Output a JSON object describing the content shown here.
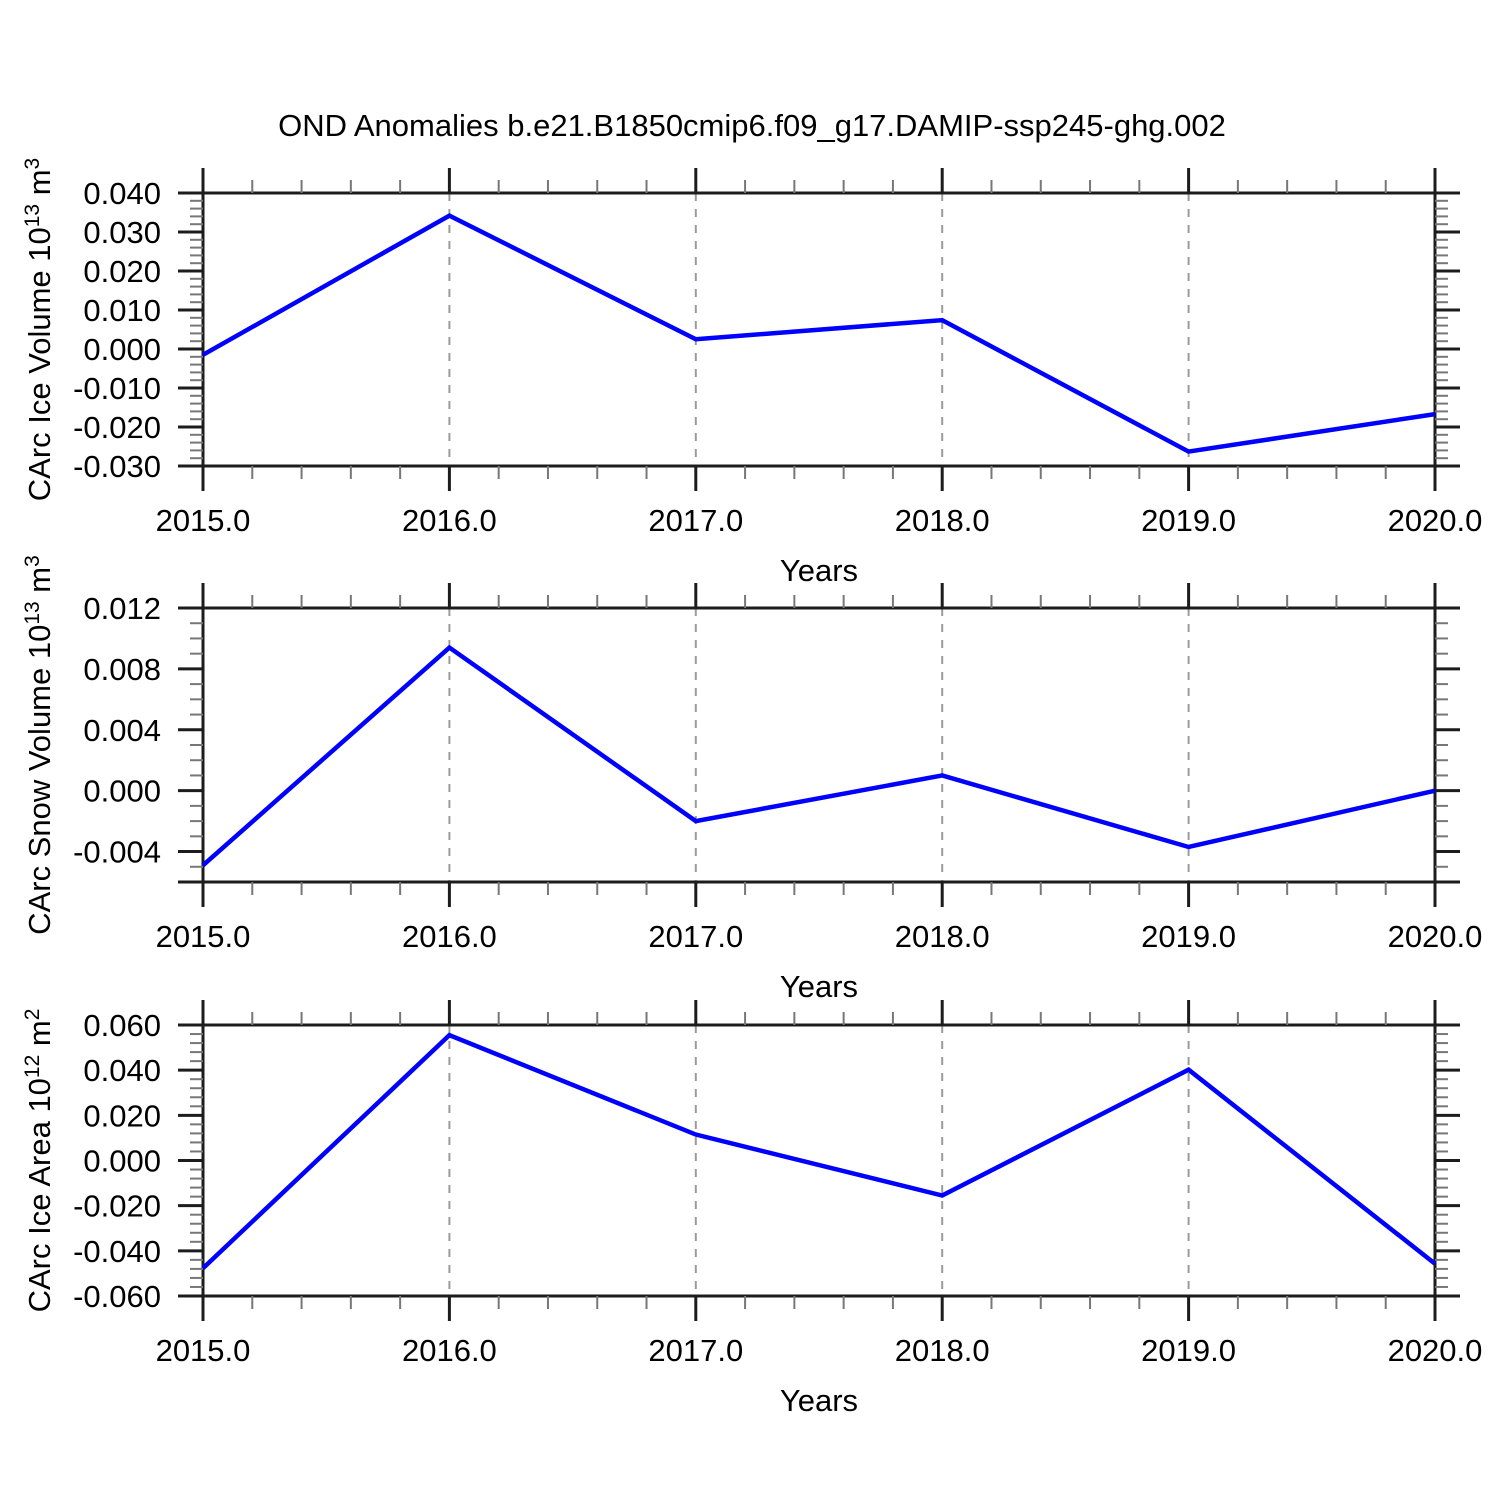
{
  "title": "OND Anomalies b.e21.B1850cmip6.f09_g17.DAMIP-ssp245-ghg.002",
  "colors": {
    "line": "#0000ff",
    "frame": "#1c1c1c",
    "major_tick": "#1c1c1c",
    "minor_tick": "#777777",
    "grid": "#9b9b9b",
    "text": "#000000",
    "background": "#ffffff"
  },
  "chart_data": [
    {
      "type": "line",
      "name": "carc-ice-volume",
      "ylabel": "CArc Ice Volume 10^13 m^3",
      "ylabel_parts": [
        {
          "t": "CArc Ice Volume 10"
        },
        {
          "t": "13",
          "sup": true
        },
        {
          "t": " m"
        },
        {
          "t": "3",
          "sup": true
        }
      ],
      "xlabel": "Years",
      "x": [
        2015.0,
        2016.0,
        2017.0,
        2018.0,
        2019.0,
        2020.0
      ],
      "values": [
        -0.0015,
        0.0342,
        0.0025,
        0.0074,
        -0.0263,
        -0.0167
      ],
      "xlim": [
        2015.0,
        2020.0
      ],
      "ylim": [
        -0.03,
        0.04
      ],
      "xticks": [
        2015.0,
        2016.0,
        2017.0,
        2018.0,
        2019.0,
        2020.0
      ],
      "xtick_labels": [
        "2015.0",
        "2016.0",
        "2017.0",
        "2018.0",
        "2019.0",
        "2020.0"
      ],
      "x_minor_step": 0.2,
      "yticks": [
        0.04,
        0.03,
        0.02,
        0.01,
        0.0,
        -0.01,
        -0.02,
        -0.03
      ],
      "ytick_labels": [
        "0.040",
        "0.030",
        "0.020",
        "0.010",
        "0.000",
        "-0.010",
        "-0.020",
        "-0.030"
      ],
      "y_minor_step": 0.002,
      "grid_x": [
        2016.0,
        2017.0,
        2018.0,
        2019.0
      ],
      "grid_style": "dashed",
      "legend": "none"
    },
    {
      "type": "line",
      "name": "carc-snow-volume",
      "ylabel": "CArc Snow Volume 10^13 m^3",
      "ylabel_parts": [
        {
          "t": "CArc Snow Volume 10"
        },
        {
          "t": "13",
          "sup": true
        },
        {
          "t": " m"
        },
        {
          "t": "3",
          "sup": true
        }
      ],
      "xlabel": "Years",
      "x": [
        2015.0,
        2016.0,
        2017.0,
        2018.0,
        2019.0,
        2020.0
      ],
      "values": [
        -0.0049,
        0.0094,
        -0.002,
        0.001,
        -0.0037,
        0.0
      ],
      "xlim": [
        2015.0,
        2020.0
      ],
      "ylim": [
        -0.006,
        0.012
      ],
      "xticks": [
        2015.0,
        2016.0,
        2017.0,
        2018.0,
        2019.0,
        2020.0
      ],
      "xtick_labels": [
        "2015.0",
        "2016.0",
        "2017.0",
        "2018.0",
        "2019.0",
        "2020.0"
      ],
      "x_minor_step": 0.2,
      "yticks": [
        0.012,
        0.008,
        0.004,
        0.0,
        -0.004
      ],
      "ytick_labels": [
        "0.012",
        "0.008",
        "0.004",
        "0.000",
        "-0.004"
      ],
      "y_minor_step": 0.001,
      "grid_x": [
        2016.0,
        2017.0,
        2018.0,
        2019.0
      ],
      "grid_style": "dashed",
      "legend": "none"
    },
    {
      "type": "line",
      "name": "carc-ice-area",
      "ylabel": "CArc Ice Area 10^12 m^2",
      "ylabel_parts": [
        {
          "t": "CArc Ice Area 10"
        },
        {
          "t": "12",
          "sup": true
        },
        {
          "t": " m"
        },
        {
          "t": "2",
          "sup": true
        }
      ],
      "xlabel": "Years",
      "x": [
        2015.0,
        2016.0,
        2017.0,
        2018.0,
        2019.0,
        2020.0
      ],
      "values": [
        -0.0477,
        0.0555,
        0.0115,
        -0.0155,
        0.0402,
        -0.0457
      ],
      "xlim": [
        2015.0,
        2020.0
      ],
      "ylim": [
        -0.06,
        0.06
      ],
      "xticks": [
        2015.0,
        2016.0,
        2017.0,
        2018.0,
        2019.0,
        2020.0
      ],
      "xtick_labels": [
        "2015.0",
        "2016.0",
        "2017.0",
        "2018.0",
        "2019.0",
        "2020.0"
      ],
      "x_minor_step": 0.2,
      "yticks": [
        0.06,
        0.04,
        0.02,
        0.0,
        -0.02,
        -0.04,
        -0.06
      ],
      "ytick_labels": [
        "0.060",
        "0.040",
        "0.020",
        "0.000",
        "-0.020",
        "-0.040",
        "-0.060"
      ],
      "y_minor_step": 0.004,
      "grid_x": [
        2016.0,
        2017.0,
        2018.0,
        2019.0
      ],
      "grid_style": "dashed",
      "legend": "none"
    }
  ]
}
